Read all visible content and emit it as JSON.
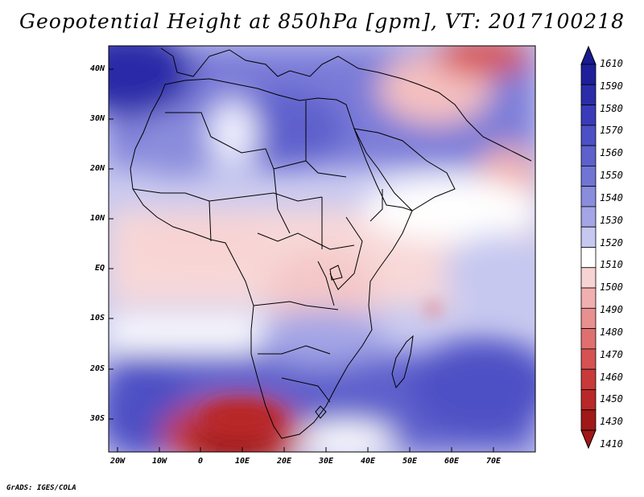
{
  "title": "Geopotential Height at 850hPa [gpm], VT: 2017100218",
  "footer": "GrADS: IGES/COLA",
  "lat_labels": [
    "40N",
    "30N",
    "20N",
    "10N",
    "EQ",
    "10S",
    "20S",
    "30S"
  ],
  "lon_labels": [
    "20W",
    "10W",
    "0",
    "10E",
    "20E",
    "30E",
    "40E",
    "50E",
    "60E",
    "70E"
  ],
  "colorbar": {
    "labels": [
      "1610",
      "1590",
      "1580",
      "1570",
      "1560",
      "1550",
      "1540",
      "1530",
      "1520",
      "1510",
      "1500",
      "1490",
      "1480",
      "1470",
      "1460",
      "1450",
      "1430",
      "1410"
    ],
    "colors": [
      "#1e1f99",
      "#2b2ca8",
      "#3a3bb8",
      "#4d4fc4",
      "#5e61cc",
      "#7274d4",
      "#8a8cdc",
      "#a3a5e6",
      "#c6c8f0",
      "#ffffff",
      "#f8d3d3",
      "#f0b0b0",
      "#e89090",
      "#e07070",
      "#d65252",
      "#c83a3a",
      "#b82828",
      "#a01818"
    ],
    "top_arrow_color": "#1a1a90",
    "bottom_arrow_color": "#a01818"
  },
  "chart_data": {
    "type": "heatmap",
    "title": "Geopotential Height at 850hPa [gpm], VT: 2017100218",
    "variable": "Geopotential Height",
    "level": "850hPa",
    "units": "gpm",
    "valid_time": "2017100218",
    "lon_range": [
      -22,
      80
    ],
    "lat_range": [
      -36,
      44
    ],
    "contour_levels": [
      1410,
      1430,
      1450,
      1460,
      1470,
      1480,
      1490,
      1500,
      1510,
      1520,
      1530,
      1540,
      1550,
      1560,
      1570,
      1580,
      1590,
      1610
    ]
  }
}
